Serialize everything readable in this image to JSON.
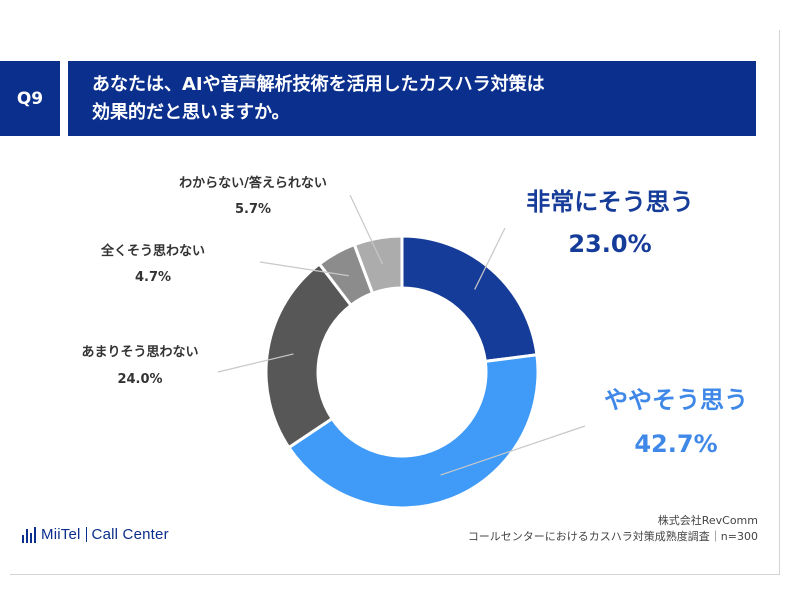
{
  "header": {
    "question_no": "Q9",
    "title_line1": "あなたは、AIや音声解析技術を活用したカスハラ対策は",
    "title_line2": "効果的だと思いますか。"
  },
  "chart_data": {
    "type": "pie",
    "categories": [
      "非常にそう思う",
      "ややそう思う",
      "あまりそう思わない",
      "全くそう思わない",
      "わからない/答えられない"
    ],
    "values": [
      23.0,
      42.7,
      24.0,
      4.7,
      5.7
    ],
    "value_labels": [
      "23.0%",
      "42.7%",
      "24.0%",
      "4.7%",
      "5.7%"
    ],
    "colors": [
      "#163c99",
      "#3f9bf7",
      "#575757",
      "#8c8c8c",
      "#acacac"
    ],
    "label_colors": [
      "#163c99",
      "#3f88e8",
      "#333333",
      "#333333",
      "#333333"
    ]
  },
  "footer": {
    "brand_name": "MiiTel",
    "brand_product": "Call Center",
    "source_company": "株式会社RevComm",
    "source_survey": "コールセンターにおけるカスハラ対策成熟度調査｜n=300"
  }
}
